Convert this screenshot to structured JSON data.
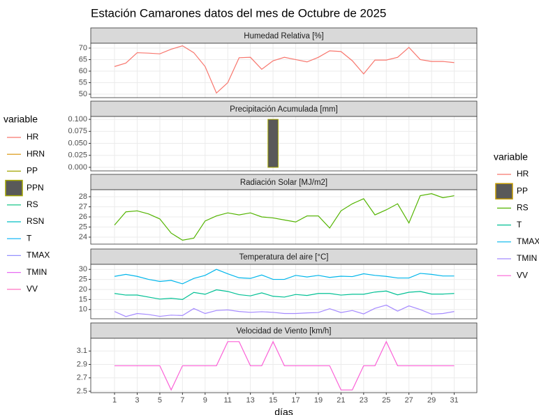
{
  "title": "Estación Camarones datos del mes de Octubre de 2025",
  "legends": [
    {
      "title": "variable",
      "items": [
        {
          "name": "HR",
          "color": "#F8766D"
        },
        {
          "name": "HRN",
          "color": "#D89000"
        },
        {
          "name": "PP",
          "color": "#A3A500"
        },
        {
          "name": "PPN",
          "color": "#595959",
          "outline": "#A3A500"
        },
        {
          "name": "RS",
          "color": "#00BF7D"
        },
        {
          "name": "RSN",
          "color": "#00BFC4"
        },
        {
          "name": "T",
          "color": "#00B0F6"
        },
        {
          "name": "TMAX",
          "color": "#9590FF"
        },
        {
          "name": "TMIN",
          "color": "#E76BF3"
        },
        {
          "name": "VV",
          "color": "#FF62BC"
        }
      ]
    },
    {
      "title": "variable",
      "items": [
        {
          "name": "HR",
          "color": "#F8766D"
        },
        {
          "name": "PP",
          "color": "#595959",
          "outline": "#C49A00"
        },
        {
          "name": "RS",
          "color": "#53B400"
        },
        {
          "name": "T",
          "color": "#00C094"
        },
        {
          "name": "TMAX",
          "color": "#00B6EB"
        },
        {
          "name": "TMIN",
          "color": "#A58AFF"
        },
        {
          "name": "VV",
          "color": "#FB61D7"
        }
      ]
    }
  ],
  "chart_data": [
    {
      "type": "line",
      "title": "Humedad Relativa [%]",
      "x": [
        1,
        2,
        3,
        4,
        5,
        6,
        7,
        8,
        9,
        10,
        11,
        12,
        13,
        14,
        15,
        16,
        17,
        18,
        19,
        20,
        21,
        22,
        23,
        24,
        25,
        26,
        27,
        28,
        29,
        30,
        31
      ],
      "xlim": [
        -1.1,
        33
      ],
      "xticks": [
        1,
        3,
        5,
        7,
        9,
        11,
        13,
        15,
        17,
        19,
        21,
        23,
        25,
        27,
        29,
        31
      ],
      "ylim": [
        48.5,
        72.1
      ],
      "yticks": [
        50,
        55,
        60,
        65,
        70
      ],
      "series": [
        {
          "name": "HR",
          "color": "#F8766D",
          "values": [
            62,
            63.5,
            68,
            67.8,
            67.5,
            69.5,
            71,
            68,
            62,
            50.5,
            55,
            65.8,
            66,
            60.8,
            64.5,
            66,
            65,
            64,
            66,
            68.8,
            68.5,
            64.5,
            58.8,
            64.8,
            64.8,
            66,
            70.3,
            65,
            64.2,
            64.2,
            63.7
          ]
        }
      ]
    },
    {
      "type": "bar",
      "title": "Precipitación Acumulada [mm]",
      "x": [
        1,
        2,
        3,
        4,
        5,
        6,
        7,
        8,
        9,
        10,
        11,
        12,
        13,
        14,
        15,
        16,
        17,
        18,
        19,
        20,
        21,
        22,
        23,
        24,
        25,
        26,
        27,
        28,
        29,
        30,
        31
      ],
      "xlim": [
        -1.1,
        33
      ],
      "xticks": [
        1,
        3,
        5,
        7,
        9,
        11,
        13,
        15,
        17,
        19,
        21,
        23,
        25,
        27,
        29,
        31
      ],
      "ylim": [
        -0.0074,
        0.106
      ],
      "yticks": [
        {
          "value": 0,
          "label": "0.000"
        },
        {
          "value": 0.025,
          "label": "0.025"
        },
        {
          "value": 0.05,
          "label": "0.050"
        },
        {
          "value": 0.075,
          "label": "0.075"
        },
        {
          "value": 0.1,
          "label": "0.100"
        }
      ],
      "series": [
        {
          "name": "PP",
          "color": "#595959",
          "outline": "#A3A500",
          "values": [
            0,
            0,
            0,
            0,
            0,
            0,
            0,
            0,
            0,
            0,
            0,
            0,
            0,
            0,
            0.1,
            0,
            0,
            0,
            0,
            0,
            0,
            0,
            0,
            0,
            0,
            0,
            0,
            0,
            0,
            0,
            0
          ]
        }
      ]
    },
    {
      "type": "line",
      "title": "Radiación Solar [MJ/m2]",
      "x": [
        1,
        2,
        3,
        4,
        5,
        6,
        7,
        8,
        9,
        10,
        11,
        12,
        13,
        14,
        15,
        16,
        17,
        18,
        19,
        20,
        21,
        22,
        23,
        24,
        25,
        26,
        27,
        28,
        29,
        30,
        31
      ],
      "xlim": [
        -1.1,
        33
      ],
      "xticks": [
        1,
        3,
        5,
        7,
        9,
        11,
        13,
        15,
        17,
        19,
        21,
        23,
        25,
        27,
        29,
        31
      ],
      "ylim": [
        23.31,
        28.69
      ],
      "yticks": [
        24,
        25,
        26,
        27,
        28
      ],
      "series": [
        {
          "name": "RS",
          "color": "#53B400",
          "values": [
            25.2,
            26.5,
            26.6,
            26.3,
            25.8,
            24.4,
            23.7,
            23.9,
            25.6,
            26.1,
            26.4,
            26.2,
            26.4,
            26.0,
            25.9,
            25.7,
            25.5,
            26.1,
            26.1,
            24.9,
            26.6,
            27.3,
            27.8,
            26.2,
            26.7,
            27.3,
            25.4,
            28.1,
            28.3,
            27.9,
            28.1
          ]
        }
      ]
    },
    {
      "type": "line",
      "title": "Temperatura del aire [°C]",
      "x": [
        1,
        2,
        3,
        4,
        5,
        6,
        7,
        8,
        9,
        10,
        11,
        12,
        13,
        14,
        15,
        16,
        17,
        18,
        19,
        20,
        21,
        22,
        23,
        24,
        25,
        26,
        27,
        28,
        29,
        30,
        31
      ],
      "xlim": [
        -1.1,
        33
      ],
      "xticks": [
        1,
        3,
        5,
        7,
        9,
        11,
        13,
        15,
        17,
        19,
        21,
        23,
        25,
        27,
        29,
        31
      ],
      "ylim": [
        5.4,
        32.5
      ],
      "yticks": [
        10,
        15,
        20,
        25,
        30
      ],
      "series": [
        {
          "name": "T",
          "color": "#00C094",
          "values": [
            18,
            17.2,
            17.2,
            16.2,
            15.2,
            15.6,
            15,
            18.5,
            17.6,
            19.8,
            19,
            17.4,
            16.8,
            18.3,
            16.6,
            16.2,
            17.5,
            17,
            18,
            18,
            17.2,
            17.6,
            17.6,
            18.7,
            19.2,
            17.3,
            18.6,
            19,
            17.7,
            17.7,
            18
          ]
        },
        {
          "name": "TMAX",
          "color": "#00B6EB",
          "values": [
            26.5,
            27.5,
            26.5,
            25,
            24,
            24.5,
            22.8,
            25.5,
            27,
            30,
            27.8,
            25.8,
            25.5,
            27.2,
            25,
            25,
            27,
            26.2,
            27,
            26,
            26.6,
            26.4,
            27.8,
            27,
            26.5,
            25.7,
            25.7,
            28,
            27.5,
            26.7,
            26.7
          ]
        },
        {
          "name": "TMIN",
          "color": "#A58AFF",
          "values": [
            9,
            6.5,
            8,
            7.5,
            6.6,
            7.2,
            7,
            10.5,
            8,
            9.5,
            9.8,
            9,
            8.6,
            8.9,
            8.6,
            8,
            8,
            8.3,
            8.5,
            10.4,
            8.5,
            9.5,
            7.8,
            10.6,
            12.2,
            9.2,
            11.8,
            10,
            7.7,
            8,
            9
          ]
        }
      ]
    },
    {
      "type": "line",
      "title": "Velocidad de Viento [km/h]",
      "xlabel": "días",
      "x": [
        1,
        2,
        3,
        4,
        5,
        6,
        7,
        8,
        9,
        10,
        11,
        12,
        13,
        14,
        15,
        16,
        17,
        18,
        19,
        20,
        21,
        22,
        23,
        24,
        25,
        26,
        27,
        28,
        29,
        30,
        31
      ],
      "xlim": [
        -1.1,
        33
      ],
      "xticks": [
        1,
        3,
        5,
        7,
        9,
        11,
        13,
        15,
        17,
        19,
        21,
        23,
        25,
        27,
        29,
        31
      ],
      "ylim": [
        2.479,
        3.29
      ],
      "yticks": [
        2.5,
        2.7,
        2.9,
        3.1
      ],
      "series": [
        {
          "name": "VV",
          "color": "#FB61D7",
          "values": [
            2.88,
            2.88,
            2.88,
            2.88,
            2.88,
            2.52,
            2.88,
            2.88,
            2.88,
            2.88,
            3.24,
            3.24,
            2.88,
            2.88,
            3.24,
            2.88,
            2.88,
            2.88,
            2.88,
            2.88,
            2.52,
            2.52,
            2.88,
            2.88,
            3.24,
            2.88,
            2.88,
            2.88,
            2.88,
            2.88,
            2.88
          ]
        }
      ]
    }
  ]
}
